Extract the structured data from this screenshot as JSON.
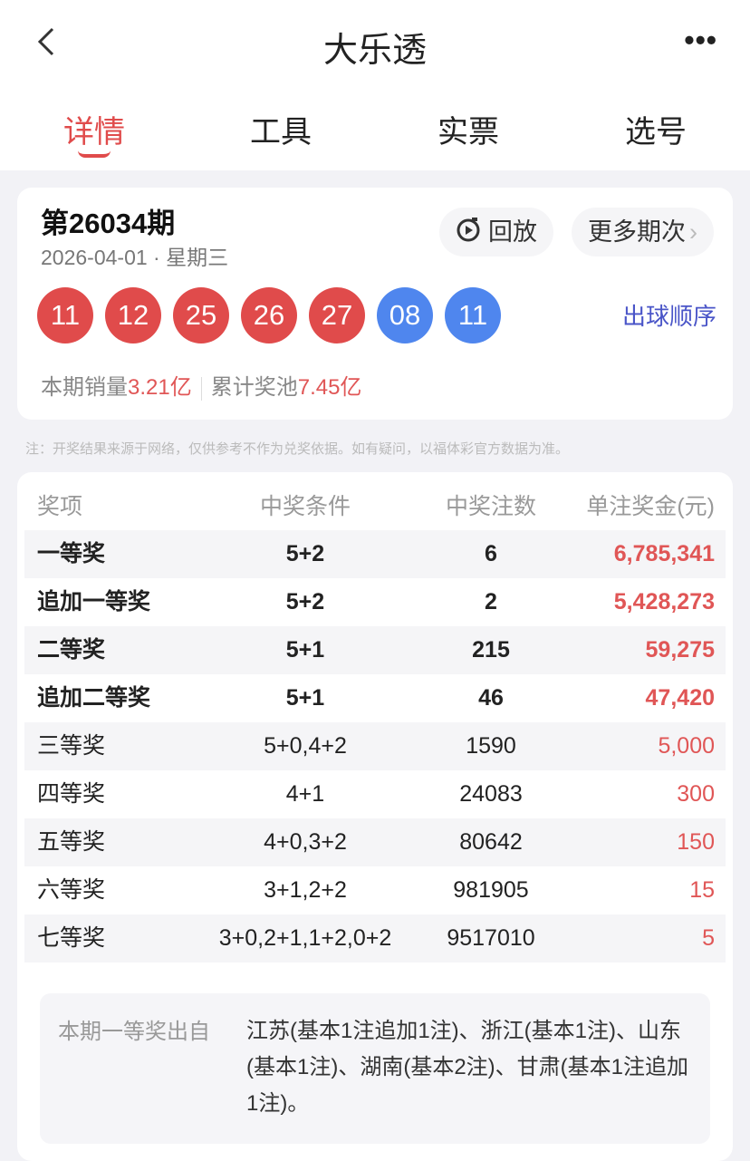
{
  "header": {
    "title": "大乐透",
    "back_icon": "chevron-left-icon",
    "more_icon": "more-icon"
  },
  "tabs": [
    {
      "label": "详情",
      "active": true
    },
    {
      "label": "工具"
    },
    {
      "label": "实票"
    },
    {
      "label": "选号"
    }
  ],
  "draw": {
    "issue": "第26034期",
    "date": "2026-04-01 · 星期三",
    "replay_label": "回放",
    "replay_icon": "play-timer-icon",
    "more_issues_label": "更多期次",
    "more_issues_icon": "chevron-right-icon",
    "balls": [
      {
        "n": "11",
        "color": "red"
      },
      {
        "n": "12",
        "color": "red"
      },
      {
        "n": "25",
        "color": "red"
      },
      {
        "n": "26",
        "color": "red"
      },
      {
        "n": "27",
        "color": "red"
      },
      {
        "n": "08",
        "color": "blue"
      },
      {
        "n": "11",
        "color": "blue"
      }
    ],
    "order_link": "出球顺序",
    "sales_label": "本期销量",
    "sales_value": "3.21亿",
    "pool_label": "累计奖池",
    "pool_value": "7.45亿"
  },
  "colors": {
    "red_ball": "#e04b4b",
    "blue_ball": "#4f86ee",
    "accent": "#e04b4b",
    "link": "#4a55c8"
  },
  "note": "注：开奖结果来源于网络，仅供参考不作为兑奖依据。如有疑问，以福体彩官方数据为准。",
  "table": {
    "headers": [
      "奖项",
      "中奖条件",
      "中奖注数",
      "单注奖金(元)"
    ],
    "rows": [
      [
        "一等奖",
        "5+2",
        "6",
        "6,785,341"
      ],
      [
        "追加一等奖",
        "5+2",
        "2",
        "5,428,273"
      ],
      [
        "二等奖",
        "5+1",
        "215",
        "59,275"
      ],
      [
        "追加二等奖",
        "5+1",
        "46",
        "47,420"
      ],
      [
        "三等奖",
        "5+0,4+2",
        "1590",
        "5,000"
      ],
      [
        "四等奖",
        "4+1",
        "24083",
        "300"
      ],
      [
        "五等奖",
        "4+0,3+2",
        "80642",
        "150"
      ],
      [
        "六等奖",
        "3+1,2+2",
        "981905",
        "15"
      ],
      [
        "七等奖",
        "3+0,2+1,1+2,0+2",
        "9517010",
        "5"
      ]
    ]
  },
  "first_prize_source": {
    "label": "本期一等奖出自",
    "text": "江苏(基本1注追加1注)、浙江(基本1注)、山东(基本1注)、湖南(基本2注)、甘肃(基本1注追加1注)。"
  }
}
